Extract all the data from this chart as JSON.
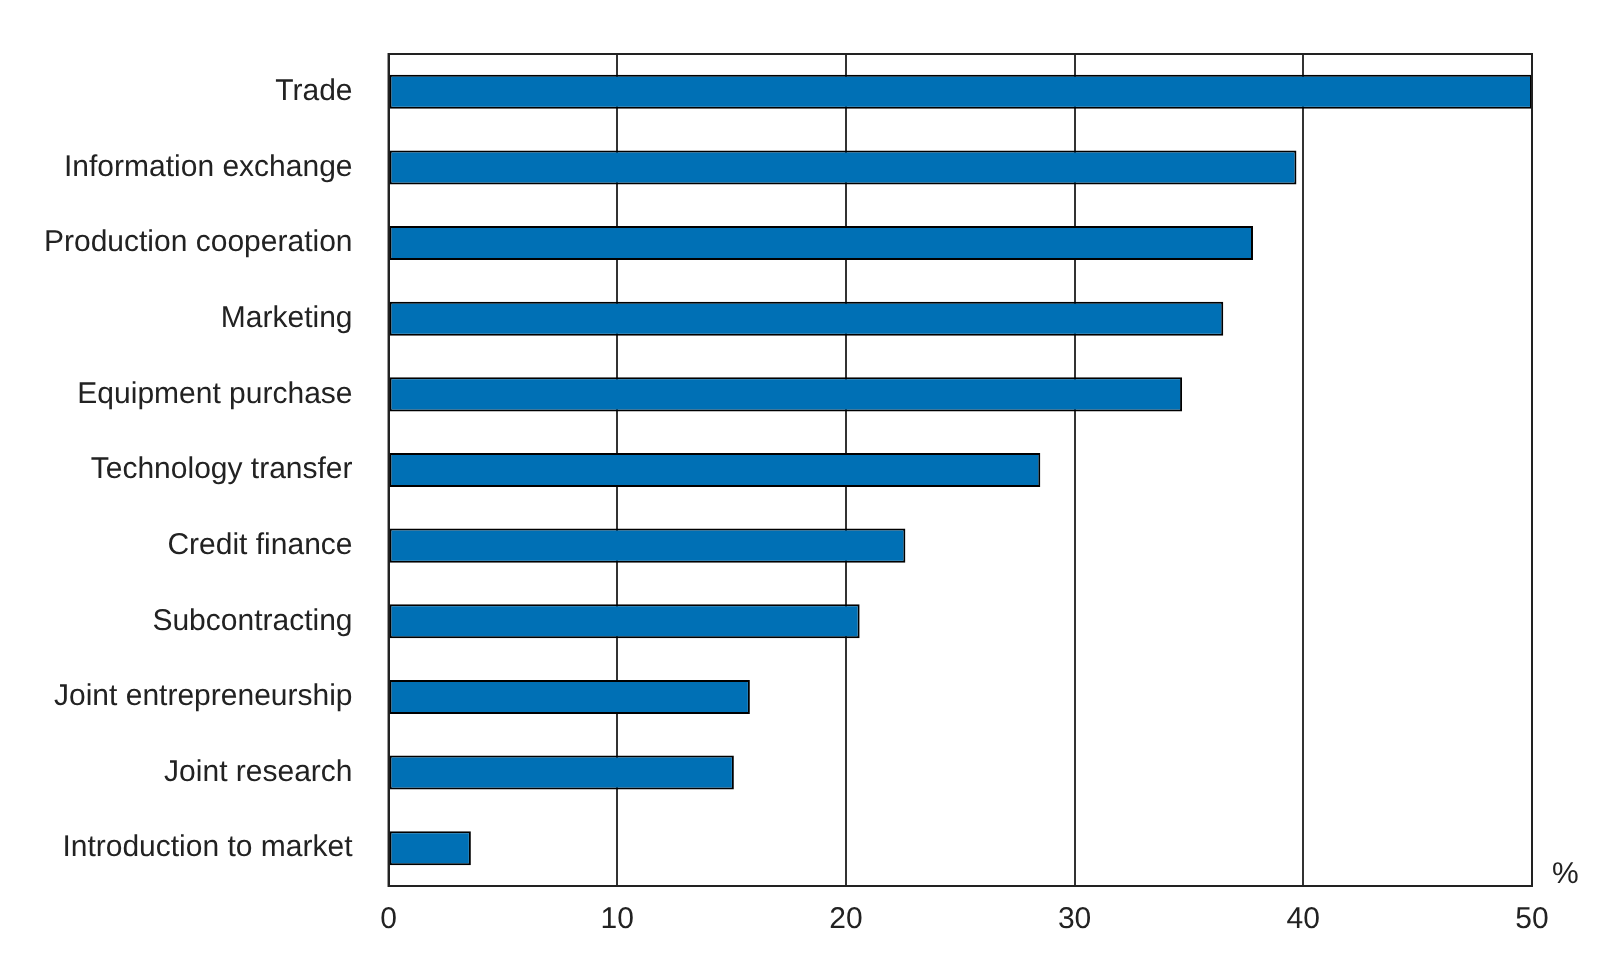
{
  "chart_data": {
    "type": "bar",
    "orientation": "horizontal",
    "xlabel": "%",
    "categories": [
      "Trade",
      "Information exchange",
      "Production cooperation",
      "Marketing",
      "Equipment purchase",
      "Technology transfer",
      "Credit finance",
      "Subcontracting",
      "Joint entrepreneurship",
      "Joint research",
      "Introduction to market"
    ],
    "values": [
      50,
      39.7,
      37.8,
      36.5,
      34.7,
      28.5,
      22.6,
      20.6,
      15.8,
      15.1,
      3.6
    ],
    "color": "#0070b5",
    "xlim": [
      0,
      50
    ],
    "xticks": [
      0,
      10,
      20,
      30,
      40,
      50
    ],
    "grid": "x",
    "legend": false
  }
}
